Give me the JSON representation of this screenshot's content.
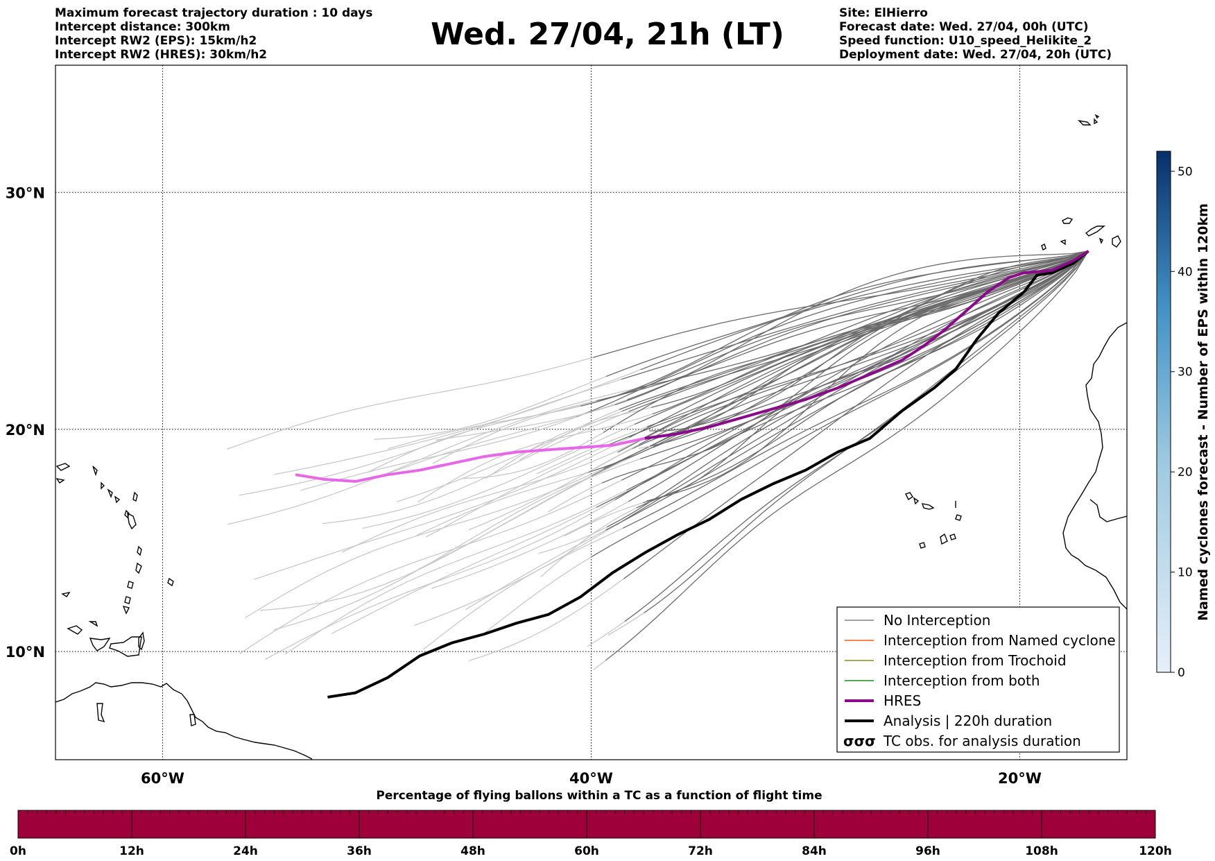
{
  "header": {
    "left_lines": [
      "Maximum forecast trajectory duration : 10 days",
      "Intercept distance: 300km",
      "Intercept RW2 (EPS):  15km/h2",
      "Intercept RW2 (HRES): 30km/h2"
    ],
    "title": "Wed. 27/04, 21h (LT)",
    "right_lines": [
      "Site: ElHierro",
      "Forecast date: Wed. 27/04, 00h (UTC)",
      "Speed function: U10_speed_Helikite_2",
      "Deployment date: Wed. 27/04, 20h (UTC)"
    ]
  },
  "map": {
    "lon_range": [
      -65,
      -15
    ],
    "lat_range": [
      5,
      35
    ],
    "lon_ticks": [
      {
        "value": -60,
        "label": "60°W"
      },
      {
        "value": -40,
        "label": "40°W"
      },
      {
        "value": -20,
        "label": "20°W"
      }
    ],
    "lat_ticks": [
      {
        "value": 30,
        "label": "30°N"
      },
      {
        "value": 20,
        "label": "20°N"
      },
      {
        "value": 10,
        "label": "10°N"
      }
    ],
    "hres_track": [
      [
        -16.8,
        27.6
      ],
      [
        -17.5,
        27.2
      ],
      [
        -18.5,
        26.8
      ],
      [
        -19.8,
        26.7
      ],
      [
        -20.5,
        26.5
      ],
      [
        -21.5,
        25.9
      ],
      [
        -22.5,
        25.1
      ],
      [
        -23.5,
        24.3
      ],
      [
        -24.5,
        23.6
      ],
      [
        -25.5,
        23.0
      ],
      [
        -27.0,
        22.4
      ],
      [
        -28.5,
        21.8
      ],
      [
        -30.0,
        21.3
      ],
      [
        -31.5,
        20.9
      ],
      [
        -33.0,
        20.5
      ],
      [
        -34.5,
        20.1
      ],
      [
        -36.0,
        19.8
      ],
      [
        -37.5,
        19.6
      ],
      [
        -39.0,
        19.3
      ],
      [
        -40.5,
        19.2
      ],
      [
        -42.0,
        19.1
      ],
      [
        -43.5,
        19.0
      ],
      [
        -45.0,
        18.8
      ],
      [
        -46.5,
        18.5
      ],
      [
        -48.0,
        18.2
      ],
      [
        -49.5,
        18.0
      ],
      [
        -51.0,
        17.7
      ],
      [
        -52.5,
        17.8
      ],
      [
        -53.8,
        18.0
      ]
    ],
    "hres_intercept_split_lon": -38.0,
    "analysis_track": [
      [
        -16.8,
        27.6
      ],
      [
        -17.5,
        27.1
      ],
      [
        -18.5,
        26.7
      ],
      [
        -19.2,
        26.6
      ],
      [
        -19.8,
        25.9
      ],
      [
        -21.0,
        25.0
      ],
      [
        -22.0,
        23.9
      ],
      [
        -23.0,
        22.6
      ],
      [
        -24.0,
        21.8
      ],
      [
        -25.5,
        20.8
      ],
      [
        -27.0,
        19.6
      ],
      [
        -28.5,
        19.0
      ],
      [
        -30.0,
        18.2
      ],
      [
        -31.5,
        17.6
      ],
      [
        -33.0,
        16.9
      ],
      [
        -34.5,
        16.0
      ],
      [
        -36.0,
        15.3
      ],
      [
        -37.5,
        14.5
      ],
      [
        -39.0,
        13.6
      ],
      [
        -40.5,
        12.5
      ],
      [
        -42.0,
        11.7
      ],
      [
        -43.5,
        11.3
      ],
      [
        -45.0,
        10.8
      ],
      [
        -46.5,
        10.4
      ],
      [
        -48.0,
        9.8
      ],
      [
        -49.5,
        8.8
      ],
      [
        -51.0,
        8.1
      ],
      [
        -52.3,
        7.9
      ]
    ],
    "ensemble_start": [
      -16.8,
      27.6
    ],
    "ensemble_count": 50
  },
  "legend": {
    "items": [
      {
        "label": "No Interception",
        "color": "#808080",
        "width": 1.5
      },
      {
        "label": "Interception from Named cyclone",
        "color": "#ff5a1e",
        "width": 1.5
      },
      {
        "label": "Interception from Trochoid",
        "color": "#8b8b1a",
        "width": 1.5
      },
      {
        "label": "Interception from both",
        "color": "#1a8b1a",
        "width": 1.5
      },
      {
        "label": "HRES",
        "color": "#8b0a8b",
        "width": 4
      },
      {
        "label": "Analysis | 220h duration",
        "color": "#000000",
        "width": 4
      },
      {
        "label": "TC obs. for analysis duration",
        "color": "#000000",
        "width": 0
      }
    ]
  },
  "colorbar": {
    "label": "Named cyclones forecast - Number of EPS within 120km",
    "ticks": [
      0,
      10,
      20,
      30,
      40,
      50
    ],
    "max": 52,
    "color_low": "#e6effa",
    "color_high": "#08306b"
  },
  "time_bar": {
    "title": "Percentage of flying ballons within a TC as a function of flight time",
    "ticks": [
      "0h",
      "12h",
      "24h",
      "36h",
      "48h",
      "60h",
      "72h",
      "84h",
      "96h",
      "108h",
      "120h"
    ],
    "color": "#9e003a"
  }
}
